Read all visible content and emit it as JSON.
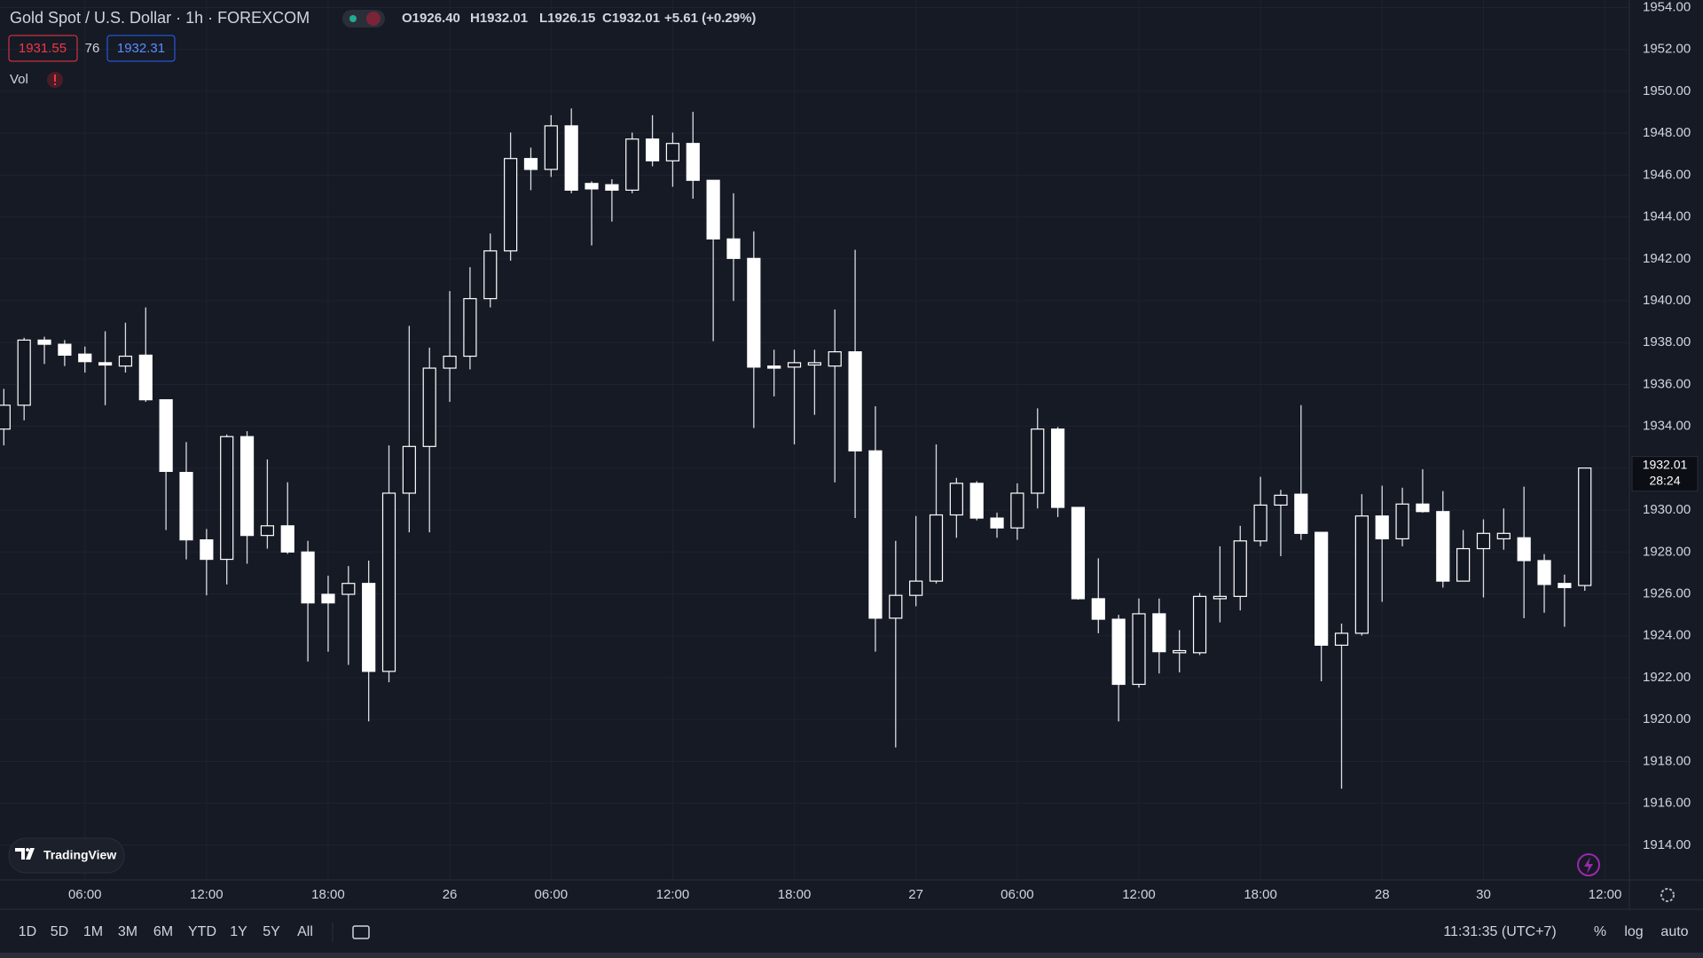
{
  "chart_data": {
    "type": "candlestick",
    "title": "Gold Spot / U.S. Dollar · 1h · FOREXCOM",
    "up_color": "#131722",
    "down_color": "#ffffff",
    "border_color": "#ffffff",
    "wick_color": "#d9dce3",
    "open": [
      1933.87,
      1935.01,
      1938.12,
      1937.92,
      1937.45,
      1937.04,
      1936.88,
      1937.4,
      1935.27,
      1931.8,
      1928.58,
      1927.65,
      1933.51,
      1928.79,
      1929.25,
      1928.0,
      1925.98,
      1925.98,
      1926.5,
      1922.3,
      1930.81,
      1933.04,
      1936.78,
      1937.35,
      1940.1,
      1942.38,
      1946.79,
      1946.27,
      1948.35,
      1945.6,
      1945.54,
      1945.28,
      1947.72,
      1946.68,
      1947.51,
      1945.75,
      1942.95,
      1942.02,
      1936.88,
      1936.83,
      1936.93,
      1936.88,
      1937.56,
      1932.83,
      1924.84,
      1925.93,
      1926.61,
      1929.77,
      1931.28,
      1929.62,
      1929.15,
      1930.81,
      1933.87,
      1930.13,
      1925.77,
      1924.79,
      1921.68,
      1925.05,
      1923.19,
      1923.19,
      1925.77,
      1925.88,
      1928.53,
      1930.24,
      1930.76,
      1928.94,
      1923.55,
      1924.12,
      1929.72,
      1928.63,
      1930.29,
      1929.93,
      1926.61,
      1928.16,
      1928.63,
      1928.68,
      1927.59,
      1926.5,
      1926.4
    ],
    "high": [
      1935.79,
      1938.23,
      1938.28,
      1938.12,
      1937.81,
      1938.54,
      1938.95,
      1939.68,
      1935.27,
      1933.25,
      1929.1,
      1933.61,
      1933.77,
      1932.42,
      1931.33,
      1928.53,
      1926.87,
      1927.33,
      1927.59,
      1933.09,
      1938.8,
      1937.76,
      1940.46,
      1941.6,
      1943.21,
      1948.03,
      1947.31,
      1948.86,
      1949.18,
      1945.7,
      1945.8,
      1948.03,
      1948.86,
      1948.03,
      1949.02,
      1945.75,
      1945.13,
      1943.31,
      1937.66,
      1937.66,
      1937.66,
      1939.58,
      1942.43,
      1934.96,
      1928.53,
      1929.72,
      1933.14,
      1931.54,
      1931.38,
      1929.88,
      1931.28,
      1934.86,
      1933.97,
      1930.13,
      1927.7,
      1925.0,
      1925.78,
      1925.78,
      1924.27,
      1926.04,
      1928.27,
      1929.25,
      1931.59,
      1930.97,
      1935.01,
      1928.94,
      1924.58,
      1930.76,
      1931.17,
      1931.07,
      1931.95,
      1930.91,
      1929.05,
      1929.56,
      1930.08,
      1931.12,
      1927.9,
      1926.92,
      1932.01
    ],
    "low": [
      1933.09,
      1934.29,
      1936.98,
      1936.88,
      1936.57,
      1935.01,
      1936.57,
      1935.17,
      1929.05,
      1927.65,
      1925.93,
      1926.45,
      1927.44,
      1928.16,
      1927.91,
      1922.77,
      1923.24,
      1922.61,
      1919.91,
      1921.78,
      1928.94,
      1928.94,
      1935.17,
      1936.72,
      1939.68,
      1941.91,
      1945.28,
      1945.91,
      1945.13,
      1942.64,
      1943.78,
      1945.13,
      1946.42,
      1945.44,
      1944.87,
      1938.07,
      1939.99,
      1933.92,
      1935.43,
      1933.14,
      1934.55,
      1931.33,
      1929.62,
      1923.24,
      1918.67,
      1925.41,
      1926.5,
      1928.68,
      1929.51,
      1928.68,
      1928.58,
      1930.08,
      1929.67,
      1925.72,
      1924.12,
      1919.91,
      1921.52,
      1922.2,
      1922.25,
      1923.08,
      1924.64,
      1925.21,
      1928.27,
      1927.8,
      1928.58,
      1921.83,
      1916.7,
      1924.01,
      1925.62,
      1928.27,
      1929.88,
      1926.3,
      1926.61,
      1925.83,
      1928.11,
      1924.84,
      1925.1,
      1924.43,
      1926.15
    ],
    "close": [
      1935.01,
      1938.12,
      1937.92,
      1937.4,
      1937.09,
      1936.93,
      1937.35,
      1935.27,
      1931.85,
      1928.58,
      1927.65,
      1933.51,
      1928.79,
      1929.25,
      1928.0,
      1925.57,
      1925.57,
      1926.5,
      1922.3,
      1930.81,
      1933.04,
      1936.78,
      1937.35,
      1940.1,
      1942.38,
      1946.79,
      1946.27,
      1948.35,
      1945.28,
      1945.34,
      1945.28,
      1947.72,
      1946.68,
      1947.51,
      1945.75,
      1942.95,
      1942.02,
      1936.83,
      1936.78,
      1937.04,
      1937.04,
      1937.56,
      1932.83,
      1924.84,
      1925.93,
      1926.61,
      1929.77,
      1931.28,
      1929.62,
      1929.15,
      1930.81,
      1933.87,
      1930.13,
      1925.77,
      1924.79,
      1921.68,
      1925.05,
      1923.24,
      1923.29,
      1925.88,
      1925.88,
      1928.53,
      1930.24,
      1930.71,
      1928.89,
      1923.55,
      1924.12,
      1929.72,
      1928.63,
      1930.29,
      1929.93,
      1926.61,
      1928.16,
      1928.89,
      1928.89,
      1927.59,
      1926.45,
      1926.3,
      1932.01
    ],
    "xlim": [
      -0.19,
      80.2
    ],
    "xticks": [
      {
        "value": 4,
        "label": "06:00"
      },
      {
        "value": 10,
        "label": "12:00"
      },
      {
        "value": 16,
        "label": "18:00"
      },
      {
        "value": 22,
        "label": "26"
      },
      {
        "value": 27,
        "label": "06:00"
      },
      {
        "value": 33,
        "label": "12:00"
      },
      {
        "value": 39,
        "label": "18:00"
      },
      {
        "value": 45,
        "label": "27"
      },
      {
        "value": 50,
        "label": "06:00"
      },
      {
        "value": 56,
        "label": "12:00"
      },
      {
        "value": 62,
        "label": "18:00"
      },
      {
        "value": 68,
        "label": "28"
      },
      {
        "value": 73,
        "label": "30"
      },
      {
        "value": 79,
        "label": "12:00"
      }
    ],
    "ylim": [
      1912.34,
      1954.36
    ],
    "yticks": [
      {
        "value": 1914,
        "label": "1914.00"
      },
      {
        "value": 1916,
        "label": "1916.00"
      },
      {
        "value": 1918,
        "label": "1918.00"
      },
      {
        "value": 1920,
        "label": "1920.00"
      },
      {
        "value": 1922,
        "label": "1922.00"
      },
      {
        "value": 1924,
        "label": "1924.00"
      },
      {
        "value": 1926,
        "label": "1926.00"
      },
      {
        "value": 1928,
        "label": "1928.00"
      },
      {
        "value": 1930,
        "label": "1930.00"
      },
      {
        "value": 1932,
        "label": "1932.00"
      },
      {
        "value": 1934,
        "label": "1934.00"
      },
      {
        "value": 1936,
        "label": "1936.00"
      },
      {
        "value": 1938,
        "label": "1938.00"
      },
      {
        "value": 1940,
        "label": "1940.00"
      },
      {
        "value": 1942,
        "label": "1942.00"
      },
      {
        "value": 1944,
        "label": "1944.00"
      },
      {
        "value": 1946,
        "label": "1946.00"
      },
      {
        "value": 1948,
        "label": "1948.00"
      },
      {
        "value": 1950,
        "label": "1950.00"
      },
      {
        "value": 1952,
        "label": "1952.00"
      },
      {
        "value": 1954,
        "label": "1954.00"
      }
    ],
    "grid": true
  },
  "legend": {
    "ohlc": [
      "O1926.40",
      "H1932.01",
      "L1926.15",
      "C1932.01"
    ],
    "change": "+5.61 (+0.29%)",
    "bid": "1931.55",
    "spread": "76",
    "ask": "1932.31",
    "volume": "Vol"
  },
  "price_tag": {
    "countdown": "28:24"
  },
  "logo": "TradingView",
  "toolbar": {
    "ranges": [
      "1D",
      "5D",
      "1M",
      "3M",
      "6M",
      "YTD",
      "1Y",
      "5Y",
      "All"
    ],
    "clock": "11:31:35 (UTC+7)",
    "options": [
      "%",
      "log",
      "auto"
    ]
  }
}
